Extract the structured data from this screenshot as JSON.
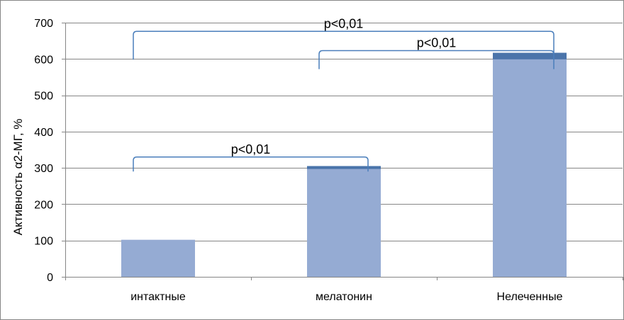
{
  "chart_data": {
    "type": "bar",
    "categories": [
      "интактные",
      "мелатонин",
      "Нелеченные"
    ],
    "values": [
      102,
      305,
      617
    ],
    "errors": [
      0,
      8,
      18
    ],
    "ylabel": "Активность α2-МГ, %",
    "xlabel": "",
    "ylim": [
      0,
      700
    ],
    "yticks": [
      0,
      100,
      200,
      300,
      400,
      500,
      600,
      700
    ],
    "grid": true,
    "legend": "none",
    "colors": {
      "bar": "#95abd3",
      "error_cap": "#4a74aa",
      "bracket": "#4a7ebb",
      "grid": "#868686"
    },
    "annotations": [
      {
        "text": "p<0,01",
        "from": "интактные",
        "to": "мелатонин",
        "left_y": 290,
        "top_y": 330,
        "right_y": 290
      },
      {
        "text": "p<0,01",
        "from": "мелатонин",
        "to": "Нелеченные",
        "left_y": 572,
        "top_y": 623,
        "right_y": 572
      },
      {
        "text": "p<0,01",
        "from": "интактные",
        "to": "Нелеченные",
        "left_y": 598,
        "top_y": 676,
        "right_y": 598
      }
    ]
  }
}
